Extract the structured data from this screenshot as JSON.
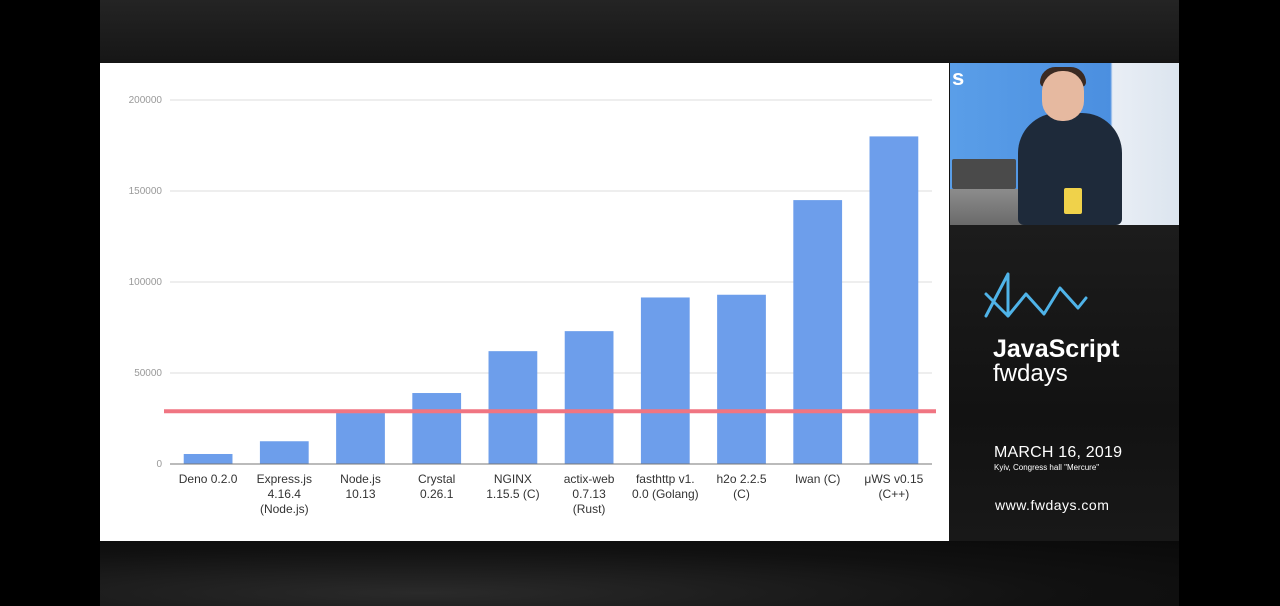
{
  "chart_data": {
    "type": "bar",
    "categories": [
      [
        "Deno 0.2.0"
      ],
      [
        "Express.js",
        "4.16.4",
        "(Node.js)"
      ],
      [
        "Node.js",
        "10.13"
      ],
      [
        "Crystal",
        "0.26.1"
      ],
      [
        "NGINX",
        "1.15.5 (C)"
      ],
      [
        "actix-web",
        "0.7.13",
        "(Rust)"
      ],
      [
        "fasthttp v1.",
        "0.0 (Golang)"
      ],
      [
        "h2o 2.2.5",
        "(C)"
      ],
      [
        "Iwan (C)"
      ],
      [
        "μWS v0.15",
        "(C++)"
      ]
    ],
    "values": [
      5500,
      12500,
      28000,
      39000,
      62000,
      73000,
      91500,
      93000,
      145000,
      180000
    ],
    "ylim": [
      0,
      200000
    ],
    "yticks": [
      0,
      50000,
      100000,
      150000,
      200000
    ],
    "reference_line": 29000,
    "grid": true,
    "legend": "none",
    "colors": {
      "bar": "#6d9eeb",
      "reference_line": "#f07582",
      "grid": "#dcdcdc",
      "tick_label": "#999999",
      "category_label": "#333333"
    }
  },
  "camera": {
    "backdrop_letter": "s"
  },
  "branding": {
    "title": "JavaScript",
    "subtitle": "fwdays",
    "date": "MARCH 16, 2019",
    "venue": "Kyiv, Congress hall \"Mercure\"",
    "url": "www.fwdays.com",
    "logo_icon": "fwdays-wave-icon"
  }
}
